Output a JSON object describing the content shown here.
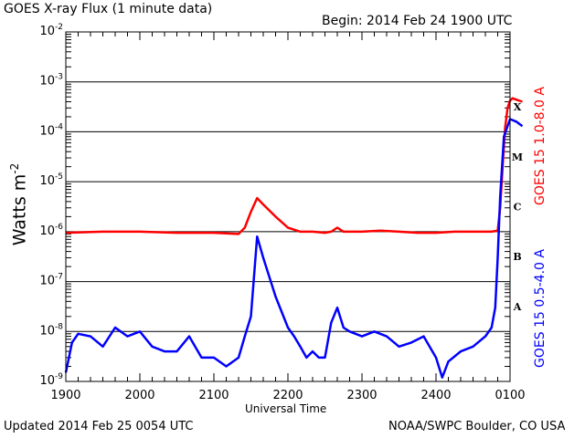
{
  "header": {
    "title": "GOES X-ray Flux (1 minute data)",
    "begin": "Begin: 2014 Feb 24 1900 UTC"
  },
  "footer": {
    "updated": "Updated 2014 Feb 25 0054 UTC",
    "credit": "NOAA/SWPC Boulder, CO USA"
  },
  "chart_data": {
    "type": "line",
    "title": "GOES X-ray Flux (1 minute data)",
    "xlabel": "Universal Time",
    "ylabel": "Watts m-2",
    "yscale": "log",
    "ylim": [
      1e-09,
      0.01
    ],
    "xlim": [
      "2014-02-24T19:00Z",
      "2014-02-25T01:00Z"
    ],
    "x_tick_labels": [
      "1900",
      "2000",
      "2100",
      "2200",
      "2300",
      "2400",
      "0100"
    ],
    "y_tick_labels": [
      "10^-9",
      "10^-8",
      "10^-7",
      "10^-6",
      "10^-5",
      "10^-4",
      "10^-3",
      "10^-2"
    ],
    "flare_classes": [
      {
        "label": "A",
        "level": 1e-08
      },
      {
        "label": "B",
        "level": 1e-07
      },
      {
        "label": "C",
        "level": 1e-06
      },
      {
        "label": "M",
        "level": 1e-05
      },
      {
        "label": "X",
        "level": 0.0001
      }
    ],
    "grid": "horizontal",
    "series": [
      {
        "name": "GOES 15 1.0-8.0 A",
        "color": "#ff0000",
        "x": [
          "19:00",
          "19:30",
          "20:00",
          "20:30",
          "21:00",
          "21:20",
          "21:25",
          "21:30",
          "21:35",
          "21:40",
          "21:50",
          "22:00",
          "22:10",
          "22:20",
          "22:30",
          "22:35",
          "22:40",
          "22:45",
          "22:50",
          "23:00",
          "23:15",
          "23:30",
          "23:45",
          "24:00",
          "24:15",
          "24:30",
          "24:45",
          "24:50",
          "24:52",
          "24:54",
          "24:56",
          "24:58",
          "25:00",
          "25:02",
          "25:05",
          "25:10"
        ],
        "values": [
          9.5e-07,
          1e-06,
          1e-06,
          9.5e-07,
          9.5e-07,
          9e-07,
          1.2e-06,
          2.5e-06,
          4.7e-06,
          3.5e-06,
          2e-06,
          1.2e-06,
          1e-06,
          1e-06,
          9.5e-07,
          1e-06,
          1.2e-06,
          1e-06,
          1e-06,
          1e-06,
          1.05e-06,
          1e-06,
          9.5e-07,
          9.5e-07,
          1e-06,
          1e-06,
          1e-06,
          1.05e-06,
          3e-06,
          2e-05,
          0.00012,
          0.0003,
          0.00042,
          0.00047,
          0.00044,
          0.0004
        ]
      },
      {
        "name": "GOES 15 0.5-4.0 A",
        "color": "#0000ff",
        "x": [
          "19:00",
          "19:05",
          "19:10",
          "19:20",
          "19:30",
          "19:40",
          "19:50",
          "20:00",
          "20:10",
          "20:20",
          "20:30",
          "20:40",
          "20:50",
          "21:00",
          "21:10",
          "21:20",
          "21:25",
          "21:30",
          "21:35",
          "21:40",
          "21:50",
          "22:00",
          "22:05",
          "22:10",
          "22:15",
          "22:20",
          "22:25",
          "22:30",
          "22:35",
          "22:40",
          "22:45",
          "22:50",
          "23:00",
          "23:10",
          "23:20",
          "23:30",
          "23:40",
          "23:50",
          "24:00",
          "24:05",
          "24:10",
          "24:20",
          "24:30",
          "24:40",
          "24:45",
          "24:48",
          "24:50",
          "24:52",
          "24:55",
          "25:00",
          "25:05",
          "25:10"
        ],
        "values": [
          1.5e-09,
          6e-09,
          9e-09,
          8e-09,
          5e-09,
          1.2e-08,
          8e-09,
          1e-08,
          5e-09,
          4e-09,
          4e-09,
          8e-09,
          3e-09,
          3e-09,
          2e-09,
          3e-09,
          8e-09,
          2e-08,
          8e-07,
          3e-07,
          5e-08,
          1.2e-08,
          8e-09,
          5e-09,
          3e-09,
          4e-09,
          3e-09,
          3e-09,
          1.5e-08,
          3e-08,
          1.2e-08,
          1e-08,
          8e-09,
          1e-08,
          8e-09,
          5e-09,
          6e-09,
          8e-09,
          3e-09,
          1.2e-09,
          2.5e-09,
          4e-09,
          5e-09,
          8e-09,
          1.2e-08,
          3e-08,
          3e-07,
          5e-06,
          8e-05,
          0.00018,
          0.00016,
          0.00013
        ]
      }
    ]
  }
}
